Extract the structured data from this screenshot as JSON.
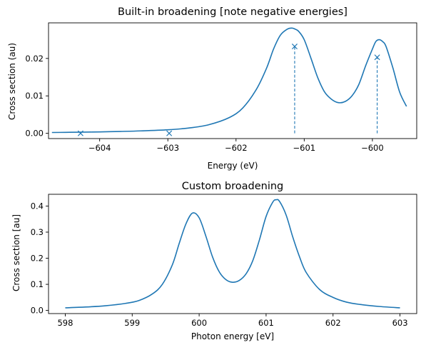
{
  "chart_data": [
    {
      "type": "line",
      "title": "Built-in broadening [note negative energies]",
      "xlabel": "Energy (eV)",
      "ylabel": "Cross section (au)",
      "xlim": [
        -604.75,
        -599.35
      ],
      "ylim": [
        -0.0014,
        0.0295
      ],
      "xticks": [
        -604,
        -603,
        -602,
        -601,
        -600
      ],
      "xtick_labels": [
        "−604",
        "−603",
        "−602",
        "−601",
        "−600"
      ],
      "yticks": [
        0.0,
        0.01,
        0.02
      ],
      "ytick_labels": [
        "0.00",
        "0.01",
        "0.02"
      ],
      "grid": false,
      "color": "#1f77b4",
      "curve": {
        "x": [
          -604.7,
          -604.5,
          -604.3,
          -604.0,
          -603.7,
          -603.4,
          -603.0,
          -602.7,
          -602.4,
          -602.1,
          -601.9,
          -601.7,
          -601.55,
          -601.45,
          -601.35,
          -601.25,
          -601.18,
          -601.13,
          -601.08,
          -601.0,
          -600.9,
          -600.8,
          -600.7,
          -600.6,
          -600.5,
          -600.4,
          -600.3,
          -600.2,
          -600.1,
          -600.0,
          -599.95,
          -599.9,
          -599.85,
          -599.8,
          -599.7,
          -599.6,
          -599.5
        ],
        "y": [
          0.00022,
          0.00026,
          0.0003,
          0.00038,
          0.0005,
          0.00065,
          0.00095,
          0.0014,
          0.0023,
          0.0042,
          0.0068,
          0.0118,
          0.0175,
          0.0225,
          0.0262,
          0.0278,
          0.0281,
          0.0278,
          0.0272,
          0.025,
          0.02,
          0.0148,
          0.011,
          0.0091,
          0.0082,
          0.0085,
          0.01,
          0.013,
          0.018,
          0.0225,
          0.0245,
          0.025,
          0.0245,
          0.0232,
          0.0175,
          0.011,
          0.0072
        ]
      },
      "markers": {
        "symbol": "x",
        "x": [
          -604.28,
          -602.98,
          -601.14,
          -599.93
        ],
        "y": [
          0.0,
          0.0,
          0.0232,
          0.0203
        ]
      },
      "stems": {
        "style": "dashed",
        "x": [
          -601.14,
          -599.93
        ],
        "y_from": [
          0.0,
          0.0
        ],
        "y_to": [
          0.0232,
          0.0203
        ]
      }
    },
    {
      "type": "line",
      "title": "Custom broadening",
      "xlabel": "Photon energy [eV]",
      "ylabel": "Cross section [au]",
      "xlim": [
        597.75,
        603.25
      ],
      "ylim": [
        -0.012,
        0.445
      ],
      "xticks": [
        598,
        599,
        600,
        601,
        602,
        603
      ],
      "xtick_labels": [
        "598",
        "599",
        "600",
        "601",
        "602",
        "603"
      ],
      "yticks": [
        0.0,
        0.1,
        0.2,
        0.3,
        0.4
      ],
      "ytick_labels": [
        "0.0",
        "0.1",
        "0.2",
        "0.3",
        "0.4"
      ],
      "grid": false,
      "color": "#1f77b4",
      "curve": {
        "x": [
          598.0,
          598.3,
          598.6,
          598.9,
          599.1,
          599.3,
          599.45,
          599.6,
          599.7,
          599.8,
          599.9,
          600.0,
          600.1,
          600.2,
          600.3,
          600.4,
          600.5,
          600.6,
          600.7,
          600.8,
          600.9,
          601.0,
          601.1,
          601.15,
          601.2,
          601.3,
          601.4,
          601.5,
          601.6,
          601.8,
          602.0,
          602.2,
          602.4,
          602.7,
          603.0
        ],
        "y": [
          0.01,
          0.013,
          0.018,
          0.027,
          0.038,
          0.063,
          0.1,
          0.175,
          0.255,
          0.33,
          0.373,
          0.355,
          0.285,
          0.205,
          0.148,
          0.118,
          0.108,
          0.115,
          0.14,
          0.19,
          0.27,
          0.36,
          0.415,
          0.424,
          0.418,
          0.365,
          0.28,
          0.205,
          0.145,
          0.08,
          0.05,
          0.032,
          0.023,
          0.015,
          0.01
        ]
      }
    }
  ]
}
